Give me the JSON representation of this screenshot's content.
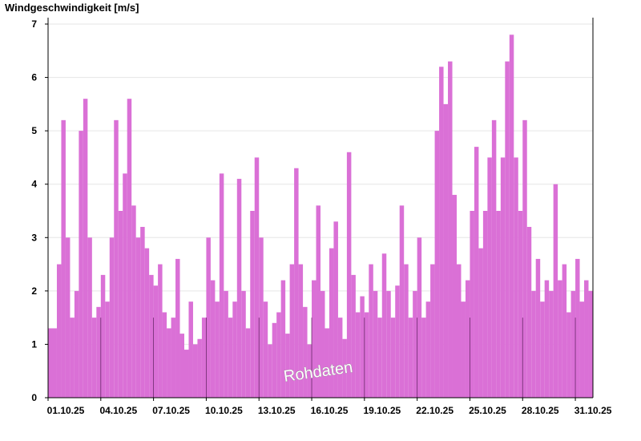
{
  "chart_data": {
    "type": "bar",
    "ylabel": "Windgeschwindigkeit [m/s]",
    "ylim": [
      0,
      7
    ],
    "yticks": [
      0,
      1,
      2,
      3,
      4,
      5,
      6,
      7
    ],
    "xlim": [
      "2025-10-01",
      "2025-11-01"
    ],
    "xticks": [
      "01.10.25",
      "04.10.25",
      "07.10.25",
      "10.10.25",
      "13.10.25",
      "16.10.25",
      "19.10.25",
      "22.10.25",
      "25.10.25",
      "28.10.25",
      "31.10.25"
    ],
    "grid": true,
    "bar_color": "#da70d6",
    "annotation": "Rohdaten",
    "series": [
      {
        "points": [
          [
            "2025-10-01",
            1.3
          ],
          [
            "2025-10-01 12:00",
            2.5
          ],
          [
            "2025-10-01 18:00",
            5.2
          ],
          [
            "2025-10-02",
            3.0
          ],
          [
            "2025-10-02 06:00",
            1.5
          ],
          [
            "2025-10-02 12:00",
            2.0
          ],
          [
            "2025-10-02 18:00",
            5.0
          ],
          [
            "2025-10-03",
            5.6
          ],
          [
            "2025-10-03 06:00",
            3.0
          ],
          [
            "2025-10-03 12:00",
            1.5
          ],
          [
            "2025-10-03 18:00",
            1.7
          ],
          [
            "2025-10-04",
            2.3
          ],
          [
            "2025-10-04 06:00",
            1.8
          ],
          [
            "2025-10-04 12:00",
            3.0
          ],
          [
            "2025-10-04 18:00",
            5.2
          ],
          [
            "2025-10-05",
            3.5
          ],
          [
            "2025-10-05 06:00",
            4.2
          ],
          [
            "2025-10-05 12:00",
            5.6
          ],
          [
            "2025-10-05 18:00",
            3.6
          ],
          [
            "2025-10-06",
            3.0
          ],
          [
            "2025-10-06 06:00",
            3.2
          ],
          [
            "2025-10-06 12:00",
            2.8
          ],
          [
            "2025-10-06 18:00",
            2.3
          ],
          [
            "2025-10-07",
            2.1
          ],
          [
            "2025-10-07 06:00",
            2.5
          ],
          [
            "2025-10-07 12:00",
            1.6
          ],
          [
            "2025-10-07 18:00",
            1.3
          ],
          [
            "2025-10-08",
            1.5
          ],
          [
            "2025-10-08 06:00",
            2.6
          ],
          [
            "2025-10-08 12:00",
            1.2
          ],
          [
            "2025-10-08 18:00",
            0.9
          ],
          [
            "2025-10-09",
            1.8
          ],
          [
            "2025-10-09 06:00",
            1.0
          ],
          [
            "2025-10-09 12:00",
            1.1
          ],
          [
            "2025-10-09 18:00",
            1.5
          ],
          [
            "2025-10-10",
            3.0
          ],
          [
            "2025-10-10 06:00",
            2.2
          ],
          [
            "2025-10-10 12:00",
            1.8
          ],
          [
            "2025-10-10 18:00",
            4.2
          ],
          [
            "2025-10-11",
            2.0
          ],
          [
            "2025-10-11 06:00",
            1.5
          ],
          [
            "2025-10-11 12:00",
            1.8
          ],
          [
            "2025-10-11 18:00",
            4.1
          ],
          [
            "2025-10-12",
            2.0
          ],
          [
            "2025-10-12 06:00",
            1.3
          ],
          [
            "2025-10-12 12:00",
            3.5
          ],
          [
            "2025-10-12 18:00",
            4.5
          ],
          [
            "2025-10-13",
            3.0
          ],
          [
            "2025-10-13 06:00",
            1.8
          ],
          [
            "2025-10-13 12:00",
            1.0
          ],
          [
            "2025-10-13 18:00",
            1.4
          ],
          [
            "2025-10-14",
            1.6
          ],
          [
            "2025-10-14 06:00",
            2.2
          ],
          [
            "2025-10-14 12:00",
            1.2
          ],
          [
            "2025-10-14 18:00",
            2.5
          ],
          [
            "2025-10-15",
            4.3
          ],
          [
            "2025-10-15 06:00",
            2.5
          ],
          [
            "2025-10-15 12:00",
            1.7
          ],
          [
            "2025-10-15 18:00",
            1.0
          ],
          [
            "2025-10-16",
            2.2
          ],
          [
            "2025-10-16 06:00",
            3.6
          ],
          [
            "2025-10-16 12:00",
            2.0
          ],
          [
            "2025-10-16 18:00",
            1.3
          ],
          [
            "2025-10-17",
            2.8
          ],
          [
            "2025-10-17 06:00",
            3.3
          ],
          [
            "2025-10-17 12:00",
            1.5
          ],
          [
            "2025-10-17 18:00",
            1.1
          ],
          [
            "2025-10-18",
            4.6
          ],
          [
            "2025-10-18 06:00",
            2.3
          ],
          [
            "2025-10-18 12:00",
            1.6
          ],
          [
            "2025-10-18 18:00",
            1.9
          ],
          [
            "2025-10-19",
            1.6
          ],
          [
            "2025-10-19 06:00",
            2.5
          ],
          [
            "2025-10-19 12:00",
            2.0
          ],
          [
            "2025-10-19 18:00",
            1.5
          ],
          [
            "2025-10-20",
            2.7
          ],
          [
            "2025-10-20 06:00",
            2.0
          ],
          [
            "2025-10-20 12:00",
            1.5
          ],
          [
            "2025-10-20 18:00",
            2.1
          ],
          [
            "2025-10-21",
            3.6
          ],
          [
            "2025-10-21 06:00",
            2.5
          ],
          [
            "2025-10-21 12:00",
            1.5
          ],
          [
            "2025-10-21 18:00",
            2.0
          ],
          [
            "2025-10-22",
            3.0
          ],
          [
            "2025-10-22 06:00",
            1.5
          ],
          [
            "2025-10-22 12:00",
            1.8
          ],
          [
            "2025-10-22 18:00",
            2.5
          ],
          [
            "2025-10-23",
            5.0
          ],
          [
            "2025-10-23 06:00",
            6.2
          ],
          [
            "2025-10-23 12:00",
            5.5
          ],
          [
            "2025-10-23 18:00",
            6.3
          ],
          [
            "2025-10-24",
            3.8
          ],
          [
            "2025-10-24 06:00",
            2.5
          ],
          [
            "2025-10-24 12:00",
            1.8
          ],
          [
            "2025-10-24 18:00",
            2.2
          ],
          [
            "2025-10-25",
            3.5
          ],
          [
            "2025-10-25 06:00",
            4.7
          ],
          [
            "2025-10-25 12:00",
            2.8
          ],
          [
            "2025-10-25 18:00",
            3.5
          ],
          [
            "2025-10-26",
            4.5
          ],
          [
            "2025-10-26 06:00",
            5.2
          ],
          [
            "2025-10-26 12:00",
            3.5
          ],
          [
            "2025-10-26 18:00",
            4.5
          ],
          [
            "2025-10-27",
            6.3
          ],
          [
            "2025-10-27 06:00",
            6.8
          ],
          [
            "2025-10-27 12:00",
            4.5
          ],
          [
            "2025-10-27 18:00",
            3.5
          ],
          [
            "2025-10-28",
            5.2
          ],
          [
            "2025-10-28 06:00",
            3.2
          ],
          [
            "2025-10-28 12:00",
            2.0
          ],
          [
            "2025-10-28 18:00",
            2.6
          ],
          [
            "2025-10-29",
            1.8
          ],
          [
            "2025-10-29 06:00",
            2.2
          ],
          [
            "2025-10-29 12:00",
            2.0
          ],
          [
            "2025-10-29 18:00",
            4.0
          ],
          [
            "2025-10-30",
            2.2
          ],
          [
            "2025-10-30 06:00",
            2.5
          ],
          [
            "2025-10-30 12:00",
            1.6
          ],
          [
            "2025-10-30 18:00",
            2.0
          ],
          [
            "2025-10-31",
            2.6
          ],
          [
            "2025-10-31 06:00",
            1.8
          ],
          [
            "2025-10-31 12:00",
            2.2
          ],
          [
            "2025-10-31 18:00",
            2.0
          ]
        ]
      }
    ]
  }
}
